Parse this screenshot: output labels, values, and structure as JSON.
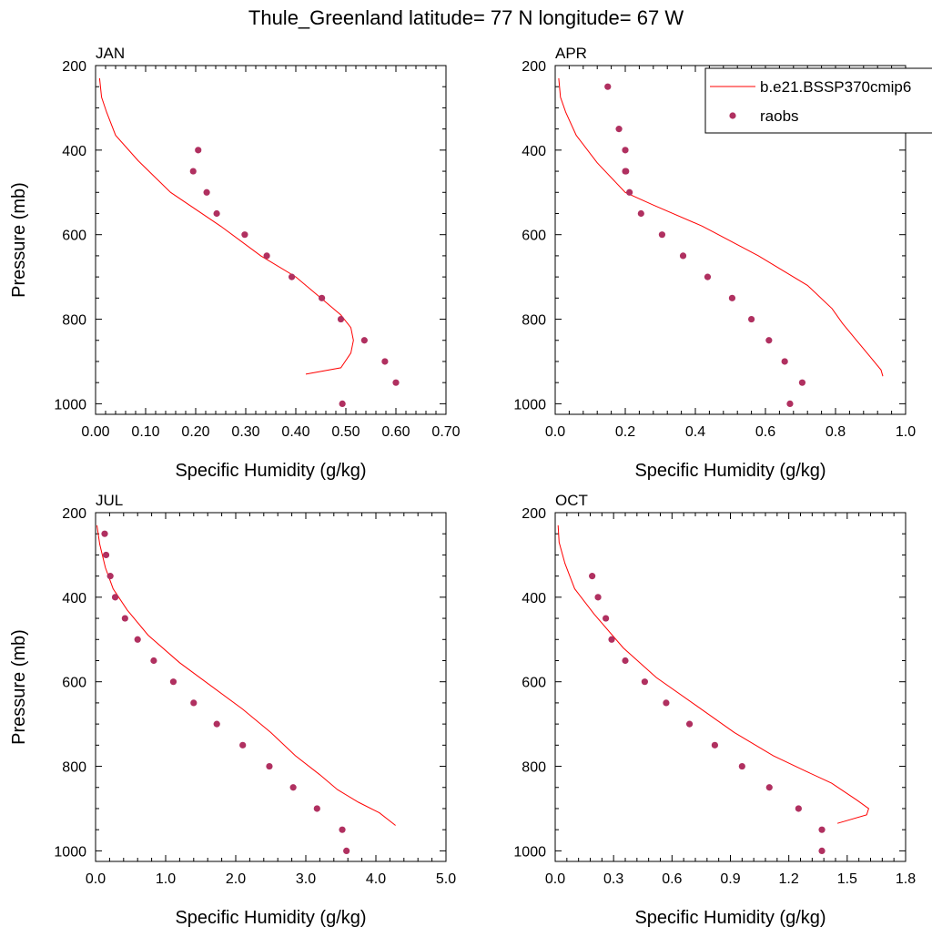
{
  "figure_title": "Thule_Greenland  latitude= 77 N longitude= 67 W",
  "legend": {
    "entries": [
      {
        "label": "b.e21.BSSP370cmip6",
        "kind": "line",
        "color": "#ff0000"
      },
      {
        "label": "raobs",
        "kind": "marker",
        "color": "#b03060"
      }
    ]
  },
  "chart_data": [
    {
      "type": "line",
      "title": "JAN",
      "xlabel": "Specific Humidity (g/kg)",
      "ylabel": "Pressure (mb)",
      "xlim": [
        0,
        0.7
      ],
      "ylim": [
        200,
        1025
      ],
      "y_inverted": true,
      "xticks": [
        "0.00",
        "0.10",
        "0.20",
        "0.30",
        "0.40",
        "0.50",
        "0.60",
        "0.70"
      ],
      "xtick_values": [
        0,
        0.1,
        0.2,
        0.3,
        0.4,
        0.5,
        0.6,
        0.7
      ],
      "yticks": [
        "200",
        "400",
        "600",
        "800",
        "1000"
      ],
      "ytick_values": [
        200,
        400,
        600,
        800,
        1000
      ],
      "series": [
        {
          "name": "b.e21.BSSP370cmip6",
          "kind": "line",
          "color": "#ff0000",
          "x": [
            0.42,
            0.49,
            0.51,
            0.515,
            0.51,
            0.49,
            0.45,
            0.4,
            0.33,
            0.25,
            0.15,
            0.085,
            0.04,
            0.022,
            0.012,
            0.008
          ],
          "y": [
            930,
            915,
            880,
            850,
            820,
            790,
            750,
            700,
            650,
            580,
            500,
            425,
            365,
            310,
            275,
            230
          ]
        },
        {
          "name": "raobs",
          "kind": "scatter",
          "color": "#b03060",
          "x": [
            0.205,
            0.195,
            0.222,
            0.242,
            0.298,
            0.342,
            0.392,
            0.452,
            0.49,
            0.537,
            0.578,
            0.6,
            0.493
          ],
          "y": [
            400,
            450,
            500,
            550,
            600,
            650,
            700,
            750,
            800,
            850,
            900,
            950,
            1000
          ]
        }
      ]
    },
    {
      "type": "line",
      "title": "APR",
      "xlabel": "Specific Humidity (g/kg)",
      "ylabel": "",
      "xlim": [
        0,
        1.0
      ],
      "ylim": [
        200,
        1025
      ],
      "y_inverted": true,
      "xticks": [
        "0.0",
        "0.2",
        "0.4",
        "0.6",
        "0.8",
        "1.0"
      ],
      "xtick_values": [
        0,
        0.2,
        0.4,
        0.6,
        0.8,
        1.0
      ],
      "yticks": [
        "200",
        "400",
        "600",
        "800",
        "1000"
      ],
      "ytick_values": [
        200,
        400,
        600,
        800,
        1000
      ],
      "series": [
        {
          "name": "b.e21.BSSP370cmip6",
          "kind": "line",
          "color": "#ff0000",
          "x": [
            0.935,
            0.93,
            0.9,
            0.86,
            0.82,
            0.79,
            0.72,
            0.58,
            0.42,
            0.28,
            0.2,
            0.12,
            0.06,
            0.03,
            0.015,
            0.01
          ],
          "y": [
            935,
            920,
            890,
            850,
            810,
            775,
            720,
            650,
            580,
            530,
            500,
            430,
            365,
            310,
            275,
            230
          ]
        },
        {
          "name": "raobs",
          "kind": "scatter",
          "color": "#b03060",
          "x": [
            0.15,
            0.182,
            0.2,
            0.2,
            0.202,
            0.212,
            0.245,
            0.305,
            0.365,
            0.435,
            0.505,
            0.56,
            0.61,
            0.655,
            0.705,
            0.67
          ],
          "y": [
            250,
            350,
            400,
            450,
            450,
            500,
            550,
            600,
            650,
            700,
            750,
            800,
            850,
            900,
            950,
            1000
          ]
        }
      ]
    },
    {
      "type": "line",
      "title": "JUL",
      "xlabel": "Specific Humidity (g/kg)",
      "ylabel": "Pressure (mb)",
      "xlim": [
        0,
        5.0
      ],
      "ylim": [
        200,
        1025
      ],
      "y_inverted": true,
      "xticks": [
        "0.0",
        "1.0",
        "2.0",
        "3.0",
        "4.0",
        "5.0"
      ],
      "xtick_values": [
        0,
        1,
        2,
        3,
        4,
        5
      ],
      "yticks": [
        "200",
        "400",
        "600",
        "800",
        "1000"
      ],
      "ytick_values": [
        200,
        400,
        600,
        800,
        1000
      ],
      "series": [
        {
          "name": "b.e21.BSSP370cmip6",
          "kind": "line",
          "color": "#ff0000",
          "x": [
            4.28,
            4.05,
            3.75,
            3.45,
            3.2,
            2.85,
            2.5,
            2.1,
            1.65,
            1.2,
            0.75,
            0.45,
            0.25,
            0.14,
            0.06,
            0.02
          ],
          "y": [
            940,
            910,
            885,
            855,
            820,
            775,
            720,
            665,
            610,
            555,
            490,
            430,
            380,
            330,
            275,
            230
          ]
        },
        {
          "name": "raobs",
          "kind": "scatter",
          "color": "#b03060",
          "x": [
            0.13,
            0.15,
            0.21,
            0.28,
            0.42,
            0.6,
            0.83,
            1.11,
            1.4,
            1.73,
            2.1,
            2.48,
            2.82,
            3.16,
            3.52,
            3.58
          ],
          "y": [
            250,
            300,
            350,
            400,
            450,
            500,
            550,
            600,
            650,
            700,
            750,
            800,
            850,
            900,
            950,
            1000
          ]
        }
      ]
    },
    {
      "type": "line",
      "title": "OCT",
      "xlabel": "Specific Humidity (g/kg)",
      "ylabel": "",
      "xlim": [
        0,
        1.8
      ],
      "ylim": [
        200,
        1025
      ],
      "y_inverted": true,
      "xticks": [
        "0.0",
        "0.3",
        "0.6",
        "0.9",
        "1.2",
        "1.5",
        "1.8"
      ],
      "xtick_values": [
        0,
        0.3,
        0.6,
        0.9,
        1.2,
        1.5,
        1.8
      ],
      "yticks": [
        "200",
        "400",
        "600",
        "800",
        "1000"
      ],
      "ytick_values": [
        200,
        400,
        600,
        800,
        1000
      ],
      "series": [
        {
          "name": "b.e21.BSSP370cmip6",
          "kind": "line",
          "color": "#ff0000",
          "x": [
            1.45,
            1.6,
            1.61,
            1.55,
            1.42,
            1.28,
            1.12,
            0.92,
            0.72,
            0.52,
            0.35,
            0.2,
            0.1,
            0.05,
            0.02,
            0.015
          ],
          "y": [
            935,
            915,
            900,
            880,
            840,
            810,
            775,
            720,
            655,
            590,
            520,
            440,
            380,
            320,
            270,
            230
          ]
        },
        {
          "name": "raobs",
          "kind": "scatter",
          "color": "#b03060",
          "x": [
            0.19,
            0.22,
            0.26,
            0.29,
            0.36,
            0.46,
            0.57,
            0.69,
            0.82,
            0.96,
            1.1,
            1.25,
            1.37,
            1.37
          ],
          "y": [
            350,
            400,
            450,
            500,
            550,
            600,
            650,
            700,
            750,
            800,
            850,
            900,
            950,
            1000
          ]
        }
      ]
    }
  ]
}
